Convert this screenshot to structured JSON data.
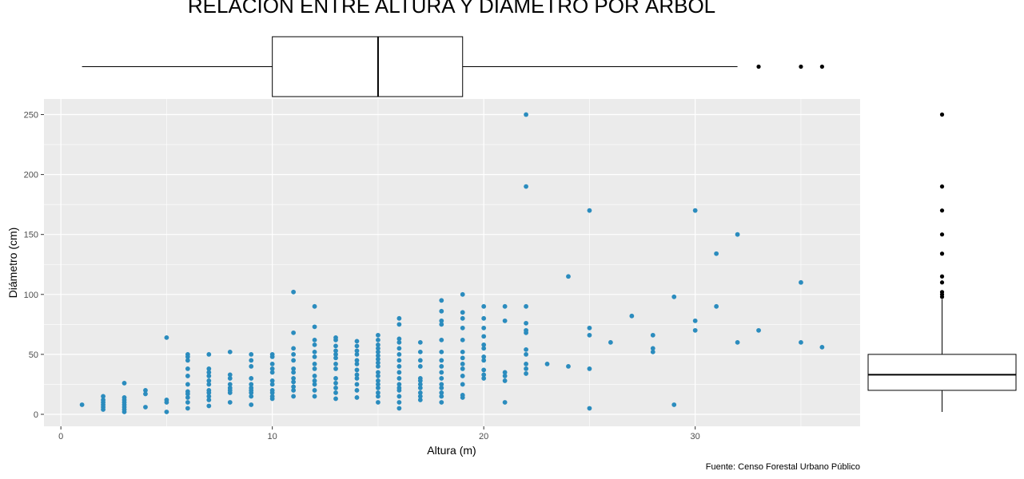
{
  "chart_data": [
    {
      "type": "scatter",
      "title": "RELACIÓN ENTRE ALTURA Y DIÁMETRO POR ÁRBOL",
      "xlabel": "Altura (m)",
      "ylabel": "Diámetro (cm)",
      "caption": "Fuente: Censo Forestal Urbano Público",
      "xlim": [
        -0.8,
        37.8
      ],
      "ylim": [
        -10,
        263
      ],
      "x_ticks": [
        0,
        10,
        20,
        30
      ],
      "y_ticks": [
        0,
        50,
        100,
        150,
        200,
        250
      ],
      "grid": true,
      "panel_background": "#ebebeb",
      "point_color": "#2b8cbe",
      "points": [
        [
          1,
          8
        ],
        [
          2,
          4
        ],
        [
          2,
          6
        ],
        [
          2,
          8
        ],
        [
          2,
          10
        ],
        [
          2,
          12
        ],
        [
          2,
          15
        ],
        [
          3,
          2
        ],
        [
          3,
          4
        ],
        [
          3,
          6
        ],
        [
          3,
          8
        ],
        [
          3,
          10
        ],
        [
          3,
          12
        ],
        [
          3,
          14
        ],
        [
          3,
          26
        ],
        [
          4,
          6
        ],
        [
          4,
          17
        ],
        [
          4,
          20
        ],
        [
          5,
          2
        ],
        [
          5,
          10
        ],
        [
          5,
          12
        ],
        [
          5,
          64
        ],
        [
          6,
          5
        ],
        [
          6,
          10
        ],
        [
          6,
          14
        ],
        [
          6,
          17
        ],
        [
          6,
          19
        ],
        [
          6,
          25
        ],
        [
          6,
          32
        ],
        [
          6,
          38
        ],
        [
          6,
          45
        ],
        [
          6,
          48
        ],
        [
          6,
          50
        ],
        [
          7,
          7
        ],
        [
          7,
          12
        ],
        [
          7,
          15
        ],
        [
          7,
          18
        ],
        [
          7,
          20
        ],
        [
          7,
          25
        ],
        [
          7,
          28
        ],
        [
          7,
          32
        ],
        [
          7,
          35
        ],
        [
          7,
          38
        ],
        [
          7,
          50
        ],
        [
          8,
          10
        ],
        [
          8,
          18
        ],
        [
          8,
          20
        ],
        [
          8,
          22
        ],
        [
          8,
          25
        ],
        [
          8,
          30
        ],
        [
          8,
          33
        ],
        [
          8,
          52
        ],
        [
          9,
          8
        ],
        [
          9,
          15
        ],
        [
          9,
          18
        ],
        [
          9,
          20
        ],
        [
          9,
          22
        ],
        [
          9,
          25
        ],
        [
          9,
          30
        ],
        [
          9,
          40
        ],
        [
          9,
          45
        ],
        [
          9,
          50
        ],
        [
          10,
          13
        ],
        [
          10,
          15
        ],
        [
          10,
          18
        ],
        [
          10,
          20
        ],
        [
          10,
          25
        ],
        [
          10,
          28
        ],
        [
          10,
          35
        ],
        [
          10,
          38
        ],
        [
          10,
          42
        ],
        [
          10,
          48
        ],
        [
          10,
          50
        ],
        [
          11,
          15
        ],
        [
          11,
          20
        ],
        [
          11,
          23
        ],
        [
          11,
          27
        ],
        [
          11,
          30
        ],
        [
          11,
          35
        ],
        [
          11,
          38
        ],
        [
          11,
          45
        ],
        [
          11,
          50
        ],
        [
          11,
          55
        ],
        [
          11,
          68
        ],
        [
          11,
          102
        ],
        [
          12,
          15
        ],
        [
          12,
          20
        ],
        [
          12,
          25
        ],
        [
          12,
          28
        ],
        [
          12,
          32
        ],
        [
          12,
          38
        ],
        [
          12,
          42
        ],
        [
          12,
          48
        ],
        [
          12,
          52
        ],
        [
          12,
          58
        ],
        [
          12,
          62
        ],
        [
          12,
          73
        ],
        [
          12,
          90
        ],
        [
          13,
          13
        ],
        [
          13,
          18
        ],
        [
          13,
          22
        ],
        [
          13,
          26
        ],
        [
          13,
          30
        ],
        [
          13,
          38
        ],
        [
          13,
          42
        ],
        [
          13,
          47
        ],
        [
          13,
          50
        ],
        [
          13,
          53
        ],
        [
          13,
          57
        ],
        [
          13,
          62
        ],
        [
          13,
          64
        ],
        [
          14,
          14
        ],
        [
          14,
          20
        ],
        [
          14,
          25
        ],
        [
          14,
          30
        ],
        [
          14,
          33
        ],
        [
          14,
          37
        ],
        [
          14,
          42
        ],
        [
          14,
          45
        ],
        [
          14,
          50
        ],
        [
          14,
          53
        ],
        [
          14,
          57
        ],
        [
          14,
          61
        ],
        [
          15,
          10
        ],
        [
          15,
          15
        ],
        [
          15,
          18
        ],
        [
          15,
          22
        ],
        [
          15,
          25
        ],
        [
          15,
          28
        ],
        [
          15,
          32
        ],
        [
          15,
          35
        ],
        [
          15,
          40
        ],
        [
          15,
          43
        ],
        [
          15,
          46
        ],
        [
          15,
          49
        ],
        [
          15,
          52
        ],
        [
          15,
          55
        ],
        [
          15,
          58
        ],
        [
          15,
          62
        ],
        [
          15,
          66
        ],
        [
          16,
          5
        ],
        [
          16,
          10
        ],
        [
          16,
          15
        ],
        [
          16,
          20
        ],
        [
          16,
          22
        ],
        [
          16,
          25
        ],
        [
          16,
          30
        ],
        [
          16,
          35
        ],
        [
          16,
          40
        ],
        [
          16,
          45
        ],
        [
          16,
          50
        ],
        [
          16,
          55
        ],
        [
          16,
          60
        ],
        [
          16,
          63
        ],
        [
          16,
          75
        ],
        [
          16,
          80
        ],
        [
          17,
          12
        ],
        [
          17,
          15
        ],
        [
          17,
          18
        ],
        [
          17,
          22
        ],
        [
          17,
          25
        ],
        [
          17,
          28
        ],
        [
          17,
          30
        ],
        [
          17,
          40
        ],
        [
          17,
          45
        ],
        [
          17,
          52
        ],
        [
          17,
          60
        ],
        [
          18,
          10
        ],
        [
          18,
          15
        ],
        [
          18,
          18
        ],
        [
          18,
          22
        ],
        [
          18,
          25
        ],
        [
          18,
          30
        ],
        [
          18,
          35
        ],
        [
          18,
          40
        ],
        [
          18,
          45
        ],
        [
          18,
          52
        ],
        [
          18,
          62
        ],
        [
          18,
          75
        ],
        [
          18,
          78
        ],
        [
          18,
          86
        ],
        [
          18,
          95
        ],
        [
          19,
          14
        ],
        [
          19,
          16
        ],
        [
          19,
          25
        ],
        [
          19,
          32
        ],
        [
          19,
          38
        ],
        [
          19,
          42
        ],
        [
          19,
          47
        ],
        [
          19,
          52
        ],
        [
          19,
          62
        ],
        [
          19,
          72
        ],
        [
          19,
          80
        ],
        [
          19,
          85
        ],
        [
          19,
          100
        ],
        [
          20,
          30
        ],
        [
          20,
          33
        ],
        [
          20,
          37
        ],
        [
          20,
          45
        ],
        [
          20,
          48
        ],
        [
          20,
          55
        ],
        [
          20,
          58
        ],
        [
          20,
          65
        ],
        [
          20,
          72
        ],
        [
          20,
          80
        ],
        [
          20,
          90
        ],
        [
          21,
          10
        ],
        [
          21,
          28
        ],
        [
          21,
          32
        ],
        [
          21,
          35
        ],
        [
          21,
          78
        ],
        [
          21,
          90
        ],
        [
          22,
          34
        ],
        [
          22,
          38
        ],
        [
          22,
          42
        ],
        [
          22,
          50
        ],
        [
          22,
          54
        ],
        [
          22,
          68
        ],
        [
          22,
          70
        ],
        [
          22,
          76
        ],
        [
          22,
          90
        ],
        [
          22,
          190
        ],
        [
          22,
          250
        ],
        [
          23,
          42
        ],
        [
          24,
          40
        ],
        [
          24,
          115
        ],
        [
          25,
          5
        ],
        [
          25,
          38
        ],
        [
          25,
          66
        ],
        [
          25,
          72
        ],
        [
          25,
          170
        ],
        [
          26,
          60
        ],
        [
          27,
          82
        ],
        [
          28,
          52
        ],
        [
          28,
          55
        ],
        [
          28,
          66
        ],
        [
          29,
          8
        ],
        [
          29,
          98
        ],
        [
          30,
          70
        ],
        [
          30,
          78
        ],
        [
          30,
          170
        ],
        [
          31,
          90
        ],
        [
          31,
          134
        ],
        [
          32,
          60
        ],
        [
          32,
          150
        ],
        [
          33,
          70
        ],
        [
          35,
          60
        ],
        [
          35,
          110
        ],
        [
          36,
          56
        ]
      ]
    },
    {
      "type": "boxplot",
      "orientation": "horizontal",
      "variable": "Altura (m)",
      "whisker_low": 1,
      "q1": 10,
      "median": 15,
      "q3": 19,
      "whisker_high": 32,
      "outliers": [
        33,
        35,
        36
      ]
    },
    {
      "type": "boxplot",
      "orientation": "vertical",
      "variable": "Diámetro (cm)",
      "whisker_low": 2,
      "q1": 20,
      "median": 33,
      "q3": 50,
      "whisker_high": 96,
      "outliers": [
        98,
        100,
        102,
        110,
        115,
        134,
        150,
        170,
        190,
        250
      ]
    }
  ]
}
